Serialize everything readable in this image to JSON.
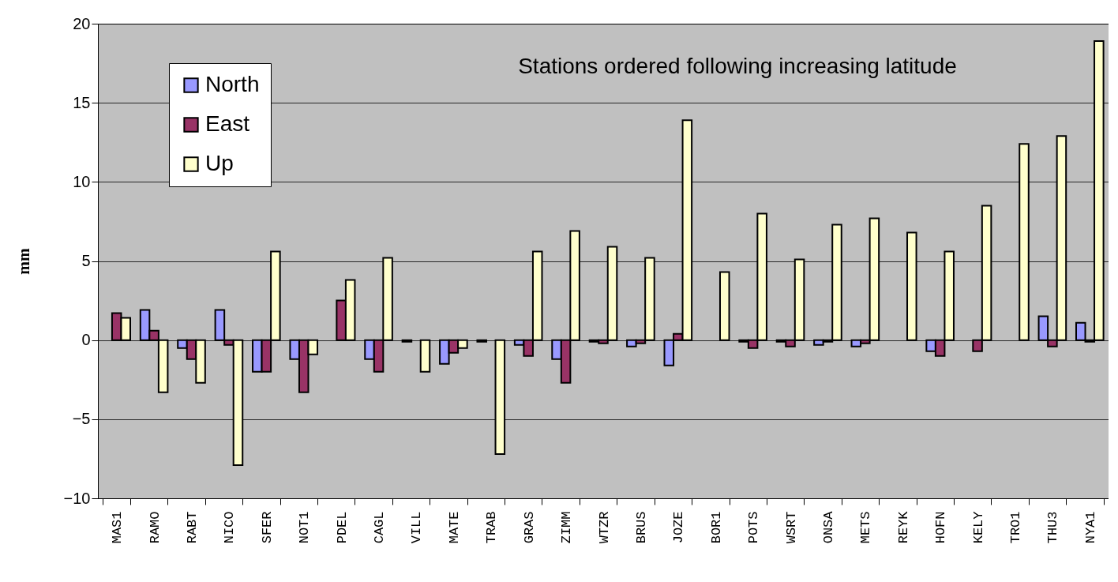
{
  "chart_data": {
    "type": "bar",
    "ylabel": "mm",
    "annotations": [
      "Stations ordered following increasing latitude"
    ],
    "categories": [
      "MAS1",
      "RAMO",
      "RABT",
      "NICO",
      "SFER",
      "NOT1",
      "PDEL",
      "CAGL",
      "VILL",
      "MATE",
      "TRAB",
      "GRAS",
      "ZIMM",
      "WTZR",
      "BRUS",
      "JOZE",
      "BOR1",
      "POTS",
      "WSRT",
      "ONSA",
      "METS",
      "REYK",
      "HOFN",
      "KELY",
      "TRO1",
      "THU3",
      "NYA1"
    ],
    "series": [
      {
        "name": "North",
        "color": "#9999ff",
        "values": [
          null,
          1.9,
          -0.5,
          1.9,
          -2,
          -1.2,
          null,
          -1.2,
          -0.1,
          -1.5,
          -0.1,
          -0.3,
          -1.2,
          -0.1,
          -0.4,
          -1.6,
          null,
          -0.1,
          -0.1,
          -0.3,
          -0.4,
          null,
          -0.7,
          null,
          null,
          1.5,
          1.1
        ]
      },
      {
        "name": "East",
        "color": "#993366",
        "values": [
          1.7,
          0.6,
          -1.2,
          -0.3,
          -2,
          -3.3,
          2.5,
          -2,
          null,
          -0.8,
          null,
          -1,
          -2.7,
          -0.2,
          -0.2,
          0.4,
          null,
          -0.5,
          -0.4,
          -0.1,
          -0.2,
          null,
          -1,
          -0.7,
          null,
          -0.4,
          -0.1
        ]
      },
      {
        "name": "Up",
        "color": "#ffffcc",
        "values": [
          1.4,
          -3.3,
          -2.7,
          -7.9,
          5.6,
          -0.9,
          3.8,
          5.2,
          -2,
          -0.5,
          -7.2,
          5.6,
          6.9,
          5.9,
          5.2,
          13.9,
          4.3,
          8,
          5.1,
          7.3,
          7.7,
          6.8,
          5.6,
          8.5,
          12.4,
          12.9,
          18.9
        ]
      }
    ],
    "ylim": [
      -10,
      20
    ],
    "yticks": [
      -10,
      -5,
      0,
      5,
      10,
      15,
      20
    ],
    "grid": "y",
    "legend": "top left"
  }
}
